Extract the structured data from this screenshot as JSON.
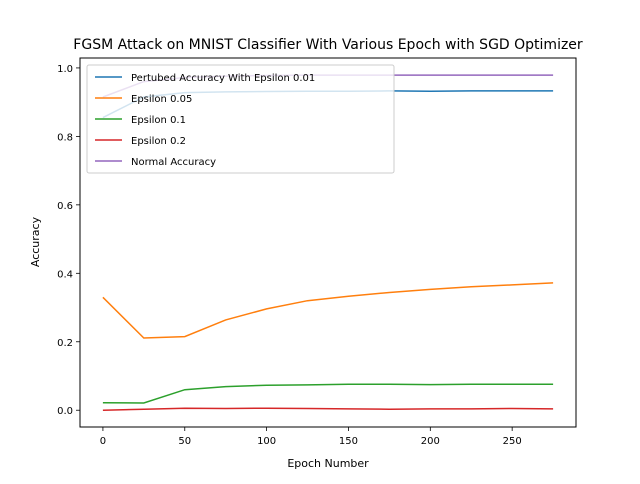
{
  "chart_data": {
    "type": "line",
    "title": "FGSM Attack on MNIST Classifier With Various Epoch with SGD Optimizer",
    "xlabel": "Epoch Number",
    "ylabel": "Accuracy",
    "xlim": [
      -14,
      289
    ],
    "ylim": [
      -0.049,
      1.029
    ],
    "xticks": [
      0,
      50,
      100,
      150,
      200,
      250
    ],
    "yticks": [
      0.0,
      0.2,
      0.4,
      0.6,
      0.8,
      1.0
    ],
    "xtick_labels": [
      "0",
      "50",
      "100",
      "150",
      "200",
      "250"
    ],
    "ytick_labels": [
      "0.0",
      "0.2",
      "0.4",
      "0.6",
      "0.8",
      "1.0"
    ],
    "grid": false,
    "legend_position": "upper-left",
    "x": [
      0,
      25,
      50,
      75,
      100,
      125,
      150,
      175,
      200,
      225,
      250,
      275
    ],
    "series": [
      {
        "name": "Pertubed Accuracy With Epsilon 0.01",
        "color": "#1f77b4",
        "values": [
          0.855,
          0.915,
          0.928,
          0.93,
          0.931,
          0.932,
          0.932,
          0.933,
          0.932,
          0.933,
          0.933,
          0.933
        ]
      },
      {
        "name": "Epsilon 0.05",
        "color": "#ff7f0e",
        "values": [
          0.33,
          0.211,
          0.215,
          0.264,
          0.296,
          0.32,
          0.333,
          0.344,
          0.353,
          0.361,
          0.366,
          0.372
        ]
      },
      {
        "name": "Epsilon 0.1",
        "color": "#2ca02c",
        "values": [
          0.022,
          0.021,
          0.06,
          0.069,
          0.073,
          0.074,
          0.076,
          0.076,
          0.075,
          0.076,
          0.076,
          0.076
        ]
      },
      {
        "name": "Epsilon 0.2",
        "color": "#d62728",
        "values": [
          0.0,
          0.003,
          0.006,
          0.005,
          0.006,
          0.005,
          0.004,
          0.003,
          0.004,
          0.004,
          0.005,
          0.004
        ]
      },
      {
        "name": "Normal Accuracy",
        "color": "#9467bd",
        "values": [
          0.915,
          0.96,
          0.972,
          0.976,
          0.978,
          0.979,
          0.979,
          0.979,
          0.979,
          0.979,
          0.979,
          0.979
        ]
      }
    ]
  }
}
